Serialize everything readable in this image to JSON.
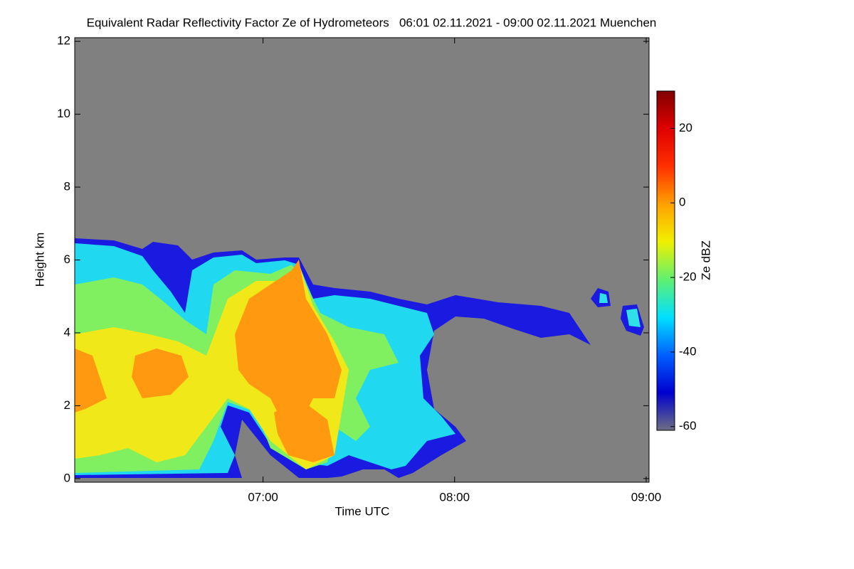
{
  "chart_data": {
    "type": "heatmap",
    "title": "Equivalent Radar Reflectivity Factor Ze of Hydrometeors   06:01 02.11.2021 - 09:00 02.11.2021 Muenchen",
    "x_label": "Time UTC",
    "y_label": "Height km",
    "xlim": [
      6.017,
      9.015
    ],
    "xticks": [
      {
        "value": 7,
        "label": "07:00"
      },
      {
        "value": 8,
        "label": "08:00"
      },
      {
        "value": 9,
        "label": "09:00"
      }
    ],
    "ylim": [
      -0.1,
      12.1
    ],
    "yticks": [
      0,
      2,
      4,
      6,
      8,
      10,
      12
    ],
    "background_color": "#808080",
    "colorbar": {
      "label": "Ze dBZ",
      "lim": [
        -61,
        30
      ],
      "ticks": [
        -60,
        -40,
        -20,
        0,
        20
      ],
      "colors": [
        "#6e6e84",
        "#0000d0",
        "#0060ff",
        "#00e0ff",
        "#60f070",
        "#f0f000",
        "#ffa000",
        "#ff3000",
        "#e00000",
        "#800000"
      ]
    }
  }
}
